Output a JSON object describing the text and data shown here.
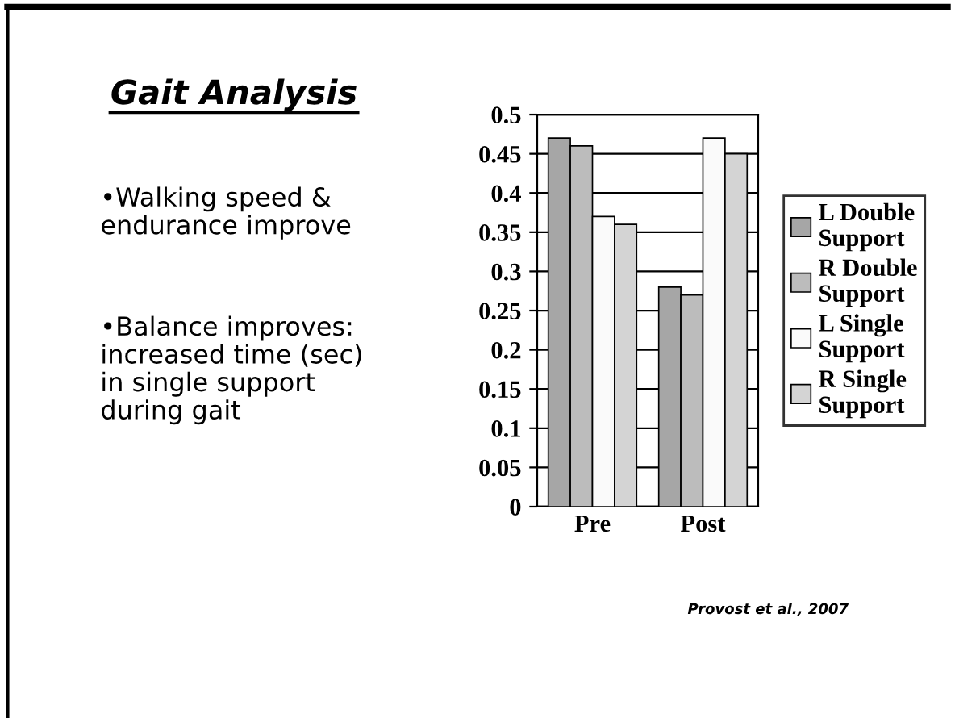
{
  "chart_data": {
    "type": "bar",
    "title": "Gait Analysis",
    "categories": [
      "Pre",
      "Post"
    ],
    "series": [
      {
        "name": "L Double Support",
        "color": "#a6a6a6",
        "values": [
          0.47,
          0.28
        ]
      },
      {
        "name": "R Double Support",
        "color": "#bcbcbc",
        "values": [
          0.46,
          0.27
        ]
      },
      {
        "name": "L Single Support",
        "color": "#fafafa",
        "values": [
          0.37,
          0.47
        ]
      },
      {
        "name": "R Single Support",
        "color": "#d4d4d4",
        "values": [
          0.36,
          0.45
        ]
      }
    ],
    "ylim": [
      0,
      0.5
    ],
    "yticks": [
      0,
      0.05,
      0.1,
      0.15,
      0.2,
      0.25,
      0.3,
      0.35,
      0.4,
      0.45,
      0.5
    ],
    "grid": "y",
    "legend": "right",
    "annotations": [
      "•Walking speed &\nendurance improve",
      "•Balance improves:\nincreased time (sec)\nin single support\nduring gait",
      "Provost et al., 2007"
    ]
  }
}
